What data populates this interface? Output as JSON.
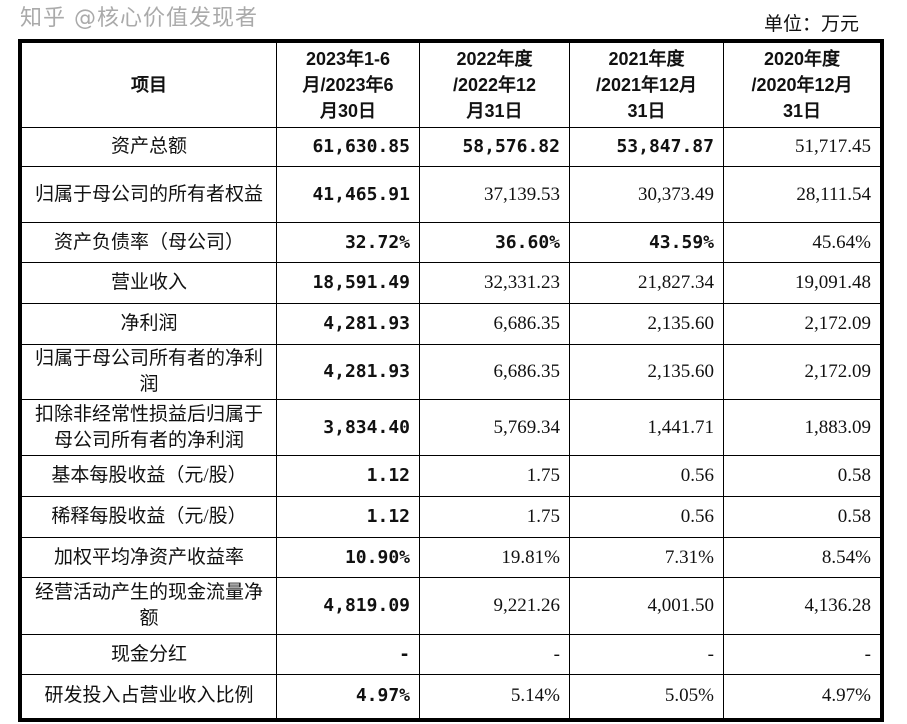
{
  "unit_label": "单位：万元",
  "headers": [
    "项目",
    "2023年1-6月/2023年6月30日",
    "2022年度/2022年12月31日",
    "2021年度/2021年12月31日",
    "2020年度/2020年12月31日"
  ],
  "rows": [
    {
      "item": "资产总额",
      "values": [
        "61,630.85",
        "58,576.82",
        "53,847.87",
        "51,717.45"
      ],
      "bold": [
        true,
        true,
        true,
        false
      ]
    },
    {
      "item": "归属于母公司的所有者权益",
      "values": [
        "41,465.91",
        "37,139.53",
        "30,373.49",
        "28,111.54"
      ],
      "bold": [
        true,
        false,
        false,
        false
      ]
    },
    {
      "item": "资产负债率（母公司）",
      "values": [
        "32.72%",
        "36.60%",
        "43.59%",
        "45.64%"
      ],
      "bold": [
        true,
        true,
        true,
        false
      ]
    },
    {
      "item": "营业收入",
      "values": [
        "18,591.49",
        "32,331.23",
        "21,827.34",
        "19,091.48"
      ],
      "bold": [
        true,
        false,
        false,
        false
      ]
    },
    {
      "item": "净利润",
      "values": [
        "4,281.93",
        "6,686.35",
        "2,135.60",
        "2,172.09"
      ],
      "bold": [
        true,
        false,
        false,
        false
      ]
    },
    {
      "item": "归属于母公司所有者的净利润",
      "values": [
        "4,281.93",
        "6,686.35",
        "2,135.60",
        "2,172.09"
      ],
      "bold": [
        true,
        false,
        false,
        false
      ]
    },
    {
      "item": "扣除非经常性损益后归属于母公司所有者的净利润",
      "values": [
        "3,834.40",
        "5,769.34",
        "1,441.71",
        "1,883.09"
      ],
      "bold": [
        true,
        false,
        false,
        false
      ]
    },
    {
      "item": "基本每股收益（元/股）",
      "values": [
        "1.12",
        "1.75",
        "0.56",
        "0.58"
      ],
      "bold": [
        true,
        false,
        false,
        false
      ]
    },
    {
      "item": "稀释每股收益（元/股）",
      "values": [
        "1.12",
        "1.75",
        "0.56",
        "0.58"
      ],
      "bold": [
        true,
        false,
        false,
        false
      ]
    },
    {
      "item": "加权平均净资产收益率",
      "values": [
        "10.90%",
        "19.81%",
        "7.31%",
        "8.54%"
      ],
      "bold": [
        true,
        false,
        false,
        false
      ]
    },
    {
      "item": "经营活动产生的现金流量净额",
      "values": [
        "4,819.09",
        "9,221.26",
        "4,001.50",
        "4,136.28"
      ],
      "bold": [
        true,
        false,
        false,
        false
      ]
    },
    {
      "item": "现金分红",
      "values": [
        "-",
        "-",
        "-",
        "-"
      ],
      "bold": [
        true,
        false,
        false,
        false
      ]
    },
    {
      "item": "研发投入占营业收入比例",
      "values": [
        "4.97%",
        "5.14%",
        "5.05%",
        "4.97%"
      ],
      "bold": [
        true,
        false,
        false,
        false
      ]
    }
  ],
  "watermark": "知乎 @核心价值发现者"
}
